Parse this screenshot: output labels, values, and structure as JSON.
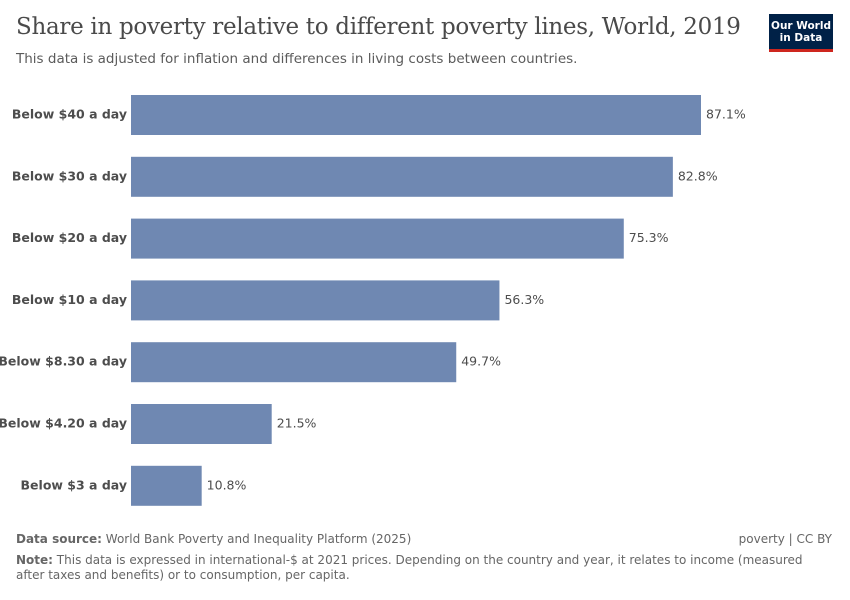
{
  "chart_data": {
    "type": "bar",
    "orientation": "horizontal",
    "title": "Share in poverty relative to different poverty lines, World, 2019",
    "subtitle": "This data is adjusted for inflation and differences in living costs between countries.",
    "categories": [
      "Below $40 a day",
      "Below $30 a day",
      "Below $20 a day",
      "Below $10 a day",
      "Below $8.30 a day",
      "Below $4.20 a day",
      "Below $3 a day"
    ],
    "values": [
      87.1,
      82.8,
      75.3,
      56.3,
      49.7,
      21.5,
      10.8
    ],
    "value_labels": [
      "87.1%",
      "82.8%",
      "75.3%",
      "56.3%",
      "49.7%",
      "21.5%",
      "10.8%"
    ],
    "color": "#6f88b2"
  },
  "logo": [
    "Our World",
    "in Data"
  ],
  "footer": {
    "source_label": "Data source:",
    "source": "World Bank Poverty and Inequality Platform (2025)",
    "license": "poverty | CC BY",
    "note_label": "Note:",
    "note": "This data is expressed in international-$ at 2021 prices. Depending on the country and year, it relates to income (measured after taxes and benefits) or to consumption, per capita."
  }
}
